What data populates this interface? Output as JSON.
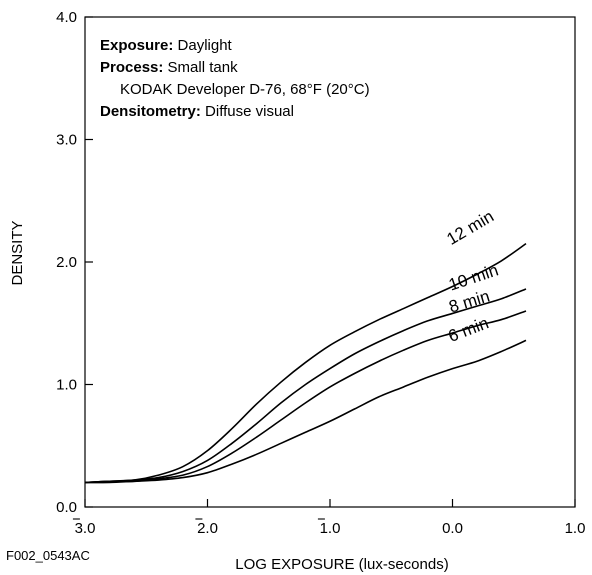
{
  "figure_id": "F002_0543AC",
  "notes": [
    {
      "label": "Exposure:",
      "text": " Daylight"
    },
    {
      "label": "Process:",
      "text": " Small tank"
    },
    {
      "label": "",
      "text": "KODAK Developer D-76, 68°F (20°C)"
    },
    {
      "label": "Densitometry:",
      "text": " Diffuse visual"
    }
  ],
  "chart_data": {
    "type": "line",
    "title": "",
    "xlabel": "LOG EXPOSURE (lux-seconds)",
    "ylabel": "DENSITY",
    "xlim": [
      -3.0,
      1.0
    ],
    "ylim": [
      0.0,
      4.0
    ],
    "x_ticks": [
      {
        "value": -3.0,
        "label": "3.0",
        "bar": true
      },
      {
        "value": -2.0,
        "label": "2.0",
        "bar": true
      },
      {
        "value": -1.0,
        "label": "1.0",
        "bar": true
      },
      {
        "value": 0.0,
        "label": "0.0",
        "bar": false
      },
      {
        "value": 1.0,
        "label": "1.0",
        "bar": false
      }
    ],
    "y_ticks": [
      {
        "value": 0.0,
        "label": "0.0"
      },
      {
        "value": 1.0,
        "label": "1.0"
      },
      {
        "value": 2.0,
        "label": "2.0"
      },
      {
        "value": 3.0,
        "label": "3.0"
      },
      {
        "value": 4.0,
        "label": "4.0"
      }
    ],
    "grid": false,
    "series": [
      {
        "name": "12 min",
        "x": [
          -3.0,
          -2.8,
          -2.6,
          -2.4,
          -2.2,
          -2.0,
          -1.8,
          -1.6,
          -1.4,
          -1.2,
          -1.0,
          -0.8,
          -0.6,
          -0.4,
          -0.2,
          0.0,
          0.2,
          0.4,
          0.6
        ],
        "y": [
          0.2,
          0.21,
          0.22,
          0.26,
          0.33,
          0.46,
          0.64,
          0.84,
          1.02,
          1.18,
          1.32,
          1.43,
          1.53,
          1.62,
          1.71,
          1.8,
          1.9,
          2.01,
          2.15
        ]
      },
      {
        "name": "10 min",
        "x": [
          -3.0,
          -2.8,
          -2.6,
          -2.4,
          -2.2,
          -2.0,
          -1.8,
          -1.6,
          -1.4,
          -1.2,
          -1.0,
          -0.8,
          -0.6,
          -0.4,
          -0.2,
          0.0,
          0.2,
          0.4,
          0.6
        ],
        "y": [
          0.2,
          0.21,
          0.22,
          0.24,
          0.29,
          0.38,
          0.52,
          0.68,
          0.85,
          1.0,
          1.13,
          1.25,
          1.35,
          1.44,
          1.52,
          1.58,
          1.64,
          1.7,
          1.78
        ]
      },
      {
        "name": "8 min",
        "x": [
          -3.0,
          -2.8,
          -2.6,
          -2.4,
          -2.2,
          -2.0,
          -1.8,
          -1.6,
          -1.4,
          -1.2,
          -1.0,
          -0.8,
          -0.6,
          -0.4,
          -0.2,
          0.0,
          0.2,
          0.4,
          0.6
        ],
        "y": [
          0.2,
          0.21,
          0.21,
          0.23,
          0.26,
          0.33,
          0.44,
          0.57,
          0.71,
          0.85,
          0.98,
          1.09,
          1.19,
          1.28,
          1.36,
          1.42,
          1.48,
          1.53,
          1.6
        ]
      },
      {
        "name": "6 min",
        "x": [
          -3.0,
          -2.8,
          -2.6,
          -2.4,
          -2.2,
          -2.0,
          -1.8,
          -1.6,
          -1.4,
          -1.2,
          -1.0,
          -0.8,
          -0.6,
          -0.4,
          -0.2,
          0.0,
          0.2,
          0.4,
          0.6
        ],
        "y": [
          0.2,
          0.2,
          0.21,
          0.22,
          0.24,
          0.28,
          0.35,
          0.43,
          0.52,
          0.61,
          0.7,
          0.8,
          0.9,
          0.98,
          1.06,
          1.13,
          1.19,
          1.27,
          1.36
        ]
      }
    ]
  }
}
